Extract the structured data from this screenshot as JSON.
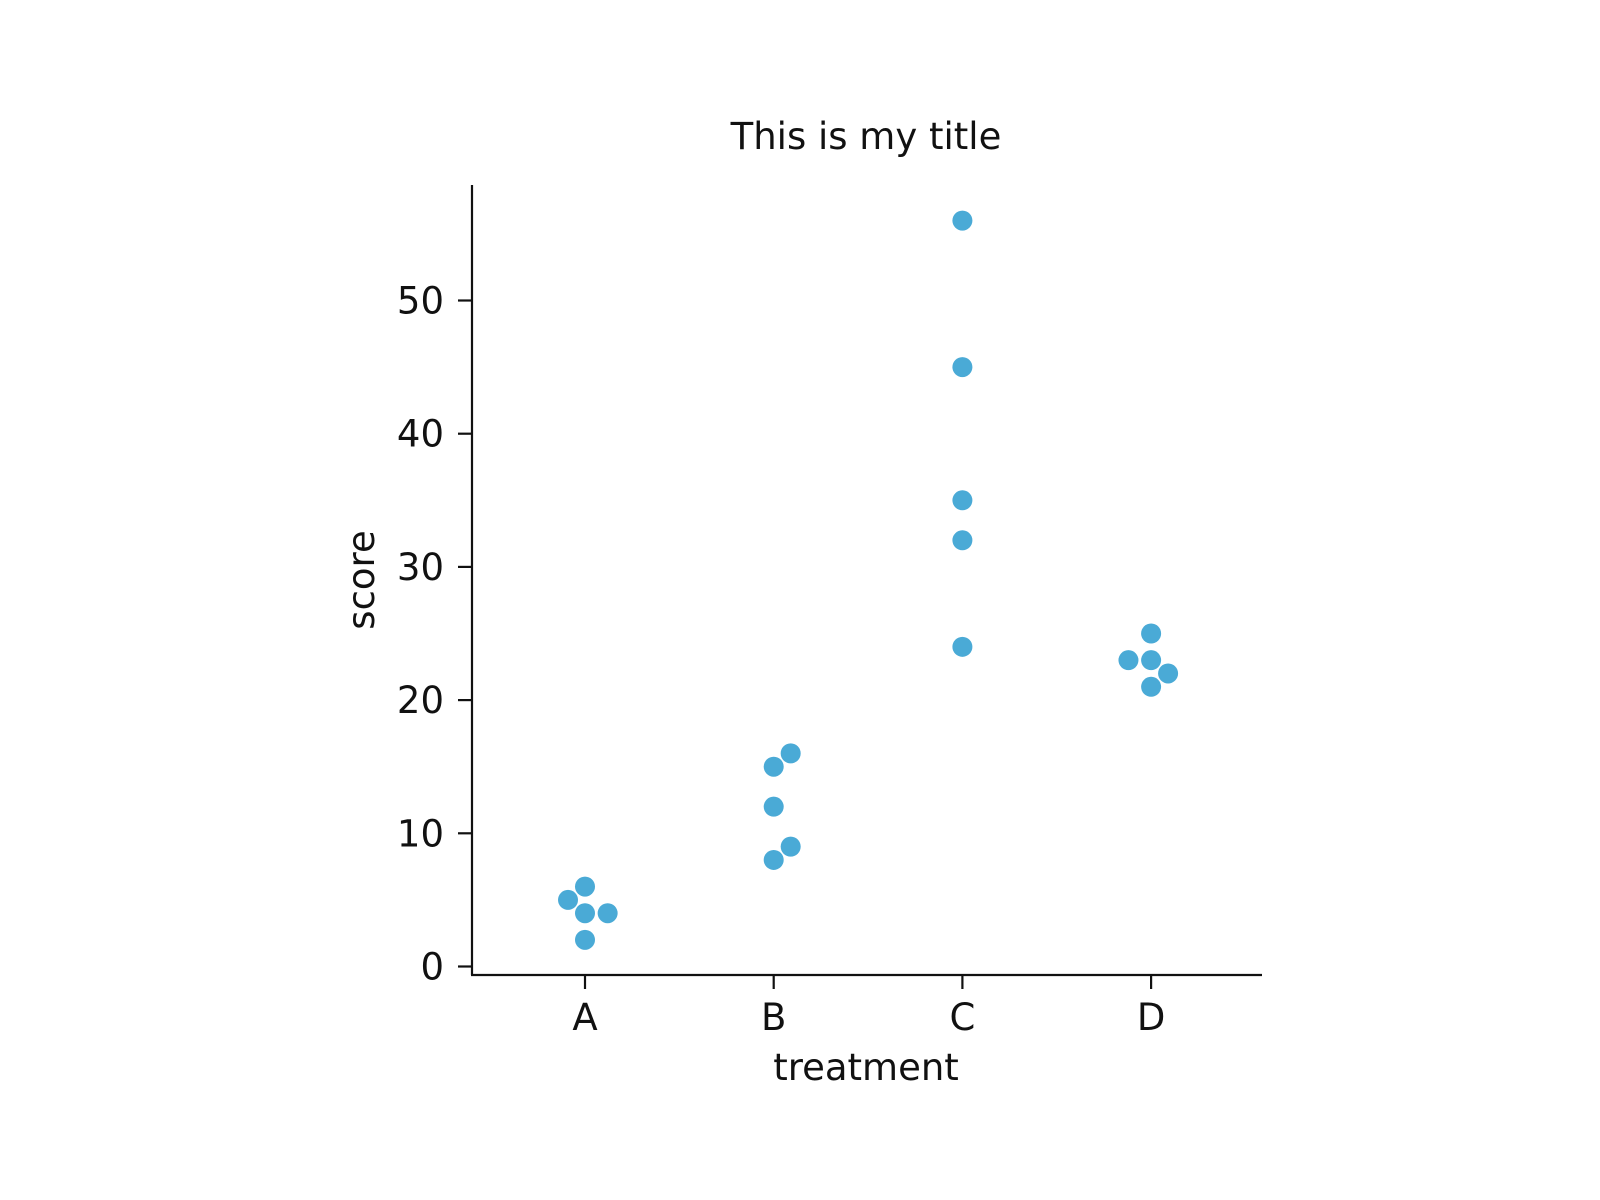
{
  "chart_data": {
    "type": "scatter",
    "title": "This is my title",
    "xlabel": "treatment",
    "ylabel": "score",
    "categories": [
      "A",
      "B",
      "C",
      "D"
    ],
    "ylim": [
      -0.6,
      59.3
    ],
    "yticks": [
      0,
      10,
      20,
      30,
      40,
      50
    ],
    "grid": false,
    "legend": "none",
    "marker_color": "#4aaad6",
    "points": [
      {
        "category": "A",
        "offset": -0.09,
        "value": 5
      },
      {
        "category": "A",
        "offset": 0.0,
        "value": 6
      },
      {
        "category": "A",
        "offset": 0.0,
        "value": 4
      },
      {
        "category": "A",
        "offset": 0.12,
        "value": 4
      },
      {
        "category": "A",
        "offset": 0.0,
        "value": 2
      },
      {
        "category": "B",
        "offset": 0.09,
        "value": 16
      },
      {
        "category": "B",
        "offset": 0.0,
        "value": 15
      },
      {
        "category": "B",
        "offset": 0.0,
        "value": 12
      },
      {
        "category": "B",
        "offset": 0.09,
        "value": 9
      },
      {
        "category": "B",
        "offset": 0.0,
        "value": 8
      },
      {
        "category": "C",
        "offset": 0.0,
        "value": 56
      },
      {
        "category": "C",
        "offset": 0.0,
        "value": 45
      },
      {
        "category": "C",
        "offset": 0.0,
        "value": 35
      },
      {
        "category": "C",
        "offset": 0.0,
        "value": 32
      },
      {
        "category": "C",
        "offset": 0.0,
        "value": 24
      },
      {
        "category": "D",
        "offset": 0.0,
        "value": 25
      },
      {
        "category": "D",
        "offset": -0.12,
        "value": 23
      },
      {
        "category": "D",
        "offset": 0.0,
        "value": 23
      },
      {
        "category": "D",
        "offset": 0.09,
        "value": 22
      },
      {
        "category": "D",
        "offset": 0.0,
        "value": 21
      }
    ]
  }
}
